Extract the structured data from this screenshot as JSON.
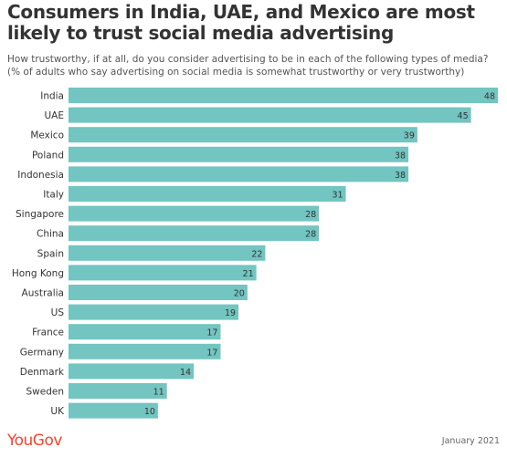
{
  "header": {
    "title": "Consumers in India, UAE, and Mexico are most likely to trust social media advertising",
    "subtitle": "How trustworthy, if at all, do you consider advertising to be in each of the following types of media? (% of adults who say advertising on social media is somewhat trustworthy or very trustworthy)"
  },
  "footer": {
    "brand": "YouGov",
    "date": "January 2021"
  },
  "colors": {
    "bar": "#72c5c0",
    "brand": "#ff412c"
  },
  "chart_data": {
    "type": "bar",
    "orientation": "horizontal",
    "categories": [
      "India",
      "UAE",
      "Mexico",
      "Poland",
      "Indonesia",
      "Italy",
      "Singapore",
      "China",
      "Spain",
      "Hong Kong",
      "Australia",
      "US",
      "France",
      "Germany",
      "Denmark",
      "Sweden",
      "UK"
    ],
    "values": [
      48,
      45,
      39,
      38,
      38,
      31,
      28,
      28,
      22,
      21,
      20,
      19,
      17,
      17,
      14,
      11,
      10
    ],
    "xlim": [
      0,
      48
    ],
    "grid": false,
    "legend": "none"
  }
}
